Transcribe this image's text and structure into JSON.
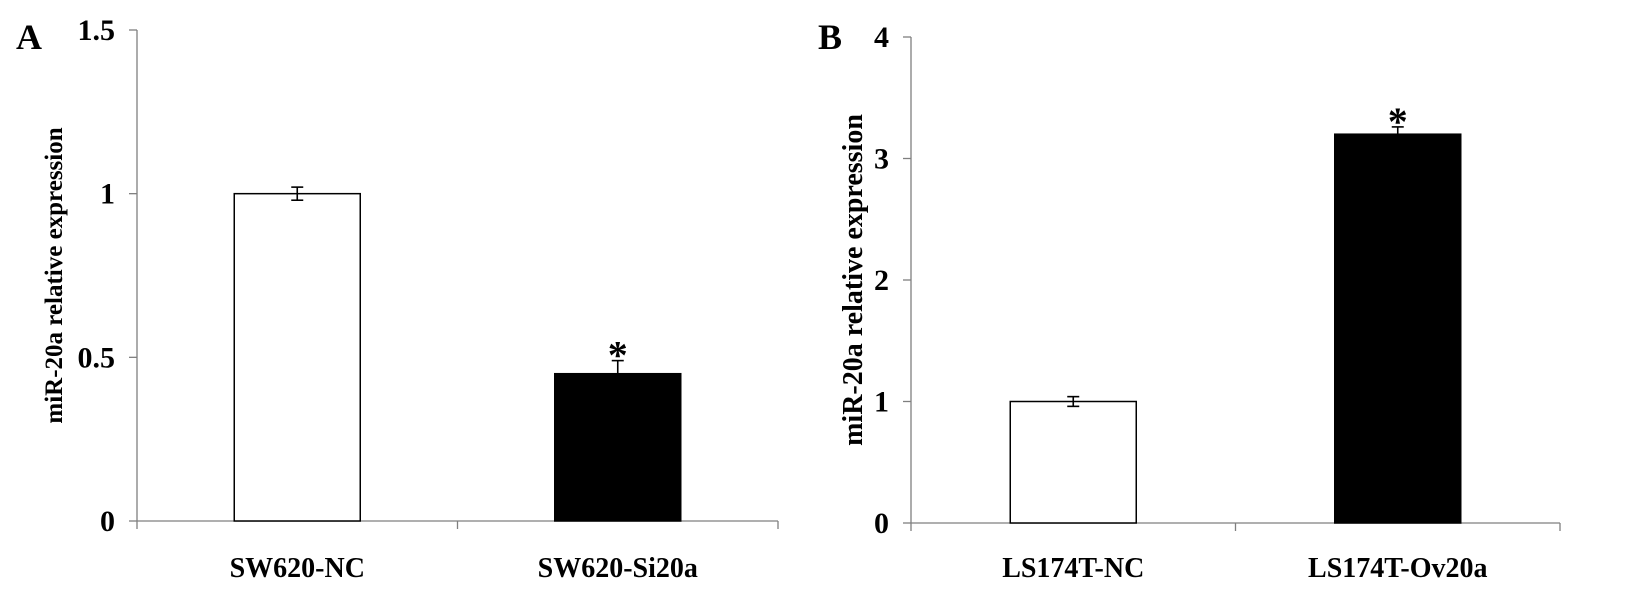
{
  "chart_data": [
    {
      "panel": "A",
      "type": "bar",
      "categories": [
        "SW620-NC",
        "SW620-Si20a"
      ],
      "values": [
        1.0,
        0.45
      ],
      "errors": [
        0.02,
        0.04
      ],
      "fills": [
        "#ffffff",
        "#000000"
      ],
      "significance": [
        "",
        "*"
      ],
      "ylabel": "miR-20a relative expression",
      "xlabel": "",
      "ylim": [
        0,
        1.5
      ],
      "yticks": [
        0,
        0.5,
        1,
        1.5
      ],
      "ytick_labels": [
        "0",
        "0.5",
        "1",
        "1.5"
      ],
      "grid": false,
      "legend": "none"
    },
    {
      "panel": "B",
      "type": "bar",
      "categories": [
        "LS174T-NC",
        "LS174T-Ov20a"
      ],
      "values": [
        1.0,
        3.2
      ],
      "errors": [
        0.04,
        0.06
      ],
      "fills": [
        "#ffffff",
        "#000000"
      ],
      "significance": [
        "",
        "*"
      ],
      "ylabel": "miR-20a relative expression",
      "xlabel": "",
      "ylim": [
        0,
        4
      ],
      "yticks": [
        0,
        1,
        2,
        3,
        4
      ],
      "ytick_labels": [
        "0",
        "1",
        "2",
        "3",
        "4"
      ],
      "grid": false,
      "legend": "none"
    }
  ]
}
